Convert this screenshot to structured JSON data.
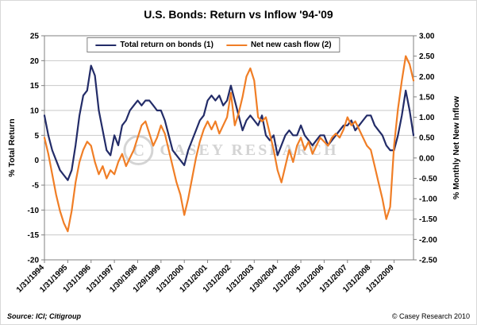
{
  "footer": {
    "source": "Source: ICI; Citigroup",
    "copyright": "© Casey Research 2010"
  },
  "watermark": {
    "monogram": "C",
    "text": "CASEY RESEARCH"
  },
  "chart_data": {
    "type": "line",
    "title": "U.S. Bonds: Return vs Inflow '94-'09",
    "grid": true,
    "legend_position": "top-center",
    "points_per_label": 6,
    "left_axis": {
      "label": "% Total Return",
      "min": -20,
      "max": 25,
      "tick_step": 5
    },
    "right_axis": {
      "label": "% Monthly Net New Inflow",
      "min": -2.5,
      "max": 3.0,
      "tick_step": 0.5
    },
    "x_tick_labels": [
      "1/31/1994",
      "1/31/1995",
      "1/31/1996",
      "1/31/1997",
      "1/30/1998",
      "1/29/1999",
      "1/31/2000",
      "1/31/2001",
      "1/31/2002",
      "1/31/2003",
      "1/30/2004",
      "1/31/2005",
      "1/31/2006",
      "1/31/2007",
      "1/31/2008",
      "1/31/2009"
    ],
    "series": [
      {
        "name": "Total return on bonds (1)",
        "axis": "left",
        "color": "#232c68",
        "values": [
          9,
          5,
          2,
          0,
          -2,
          -3,
          -4,
          -2,
          3,
          9,
          13,
          14,
          19,
          17,
          10,
          6,
          2,
          1,
          5,
          3,
          7,
          8,
          10,
          11,
          12,
          11,
          12,
          12,
          11,
          10,
          10,
          8,
          5,
          2,
          1,
          0,
          -1,
          2,
          4,
          6,
          8,
          9,
          12,
          13,
          12,
          13,
          11,
          12,
          15,
          12,
          9,
          6,
          8,
          9,
          8,
          7,
          9,
          5,
          4,
          5,
          1,
          3,
          5,
          6,
          5,
          5,
          7,
          5,
          4,
          3,
          4,
          5,
          5,
          3,
          4,
          5,
          6,
          7,
          7,
          8,
          6,
          7,
          8,
          9,
          9,
          7,
          6,
          5,
          3,
          2,
          2,
          5,
          9,
          14,
          10,
          5
        ]
      },
      {
        "name": "Net new cash flow (2)",
        "axis": "right",
        "color": "#f07e26",
        "values": [
          0.5,
          0.1,
          -0.4,
          -0.9,
          -1.3,
          -1.6,
          -1.8,
          -1.3,
          -0.6,
          -0.1,
          0.2,
          0.4,
          0.3,
          -0.1,
          -0.4,
          -0.2,
          -0.5,
          -0.3,
          -0.4,
          -0.1,
          0.1,
          -0.2,
          0.0,
          0.2,
          0.5,
          0.8,
          0.9,
          0.6,
          0.3,
          0.5,
          0.8,
          0.6,
          0.2,
          -0.2,
          -0.6,
          -0.9,
          -1.4,
          -1.0,
          -0.5,
          0.0,
          0.4,
          0.7,
          0.9,
          0.7,
          0.9,
          0.6,
          0.8,
          1.0,
          1.6,
          0.8,
          1.1,
          1.5,
          2.0,
          2.2,
          1.9,
          1.0,
          0.9,
          1.0,
          0.6,
          0.2,
          -0.3,
          -0.6,
          -0.2,
          0.2,
          -0.1,
          0.3,
          0.5,
          0.2,
          0.4,
          0.1,
          0.3,
          0.5,
          0.4,
          0.3,
          0.5,
          0.6,
          0.5,
          0.7,
          1.0,
          0.8,
          0.9,
          0.7,
          0.5,
          0.3,
          0.2,
          -0.2,
          -0.6,
          -1.0,
          -1.5,
          -1.2,
          0.3,
          1.2,
          1.9,
          2.5,
          2.3,
          1.9
        ]
      }
    ]
  }
}
